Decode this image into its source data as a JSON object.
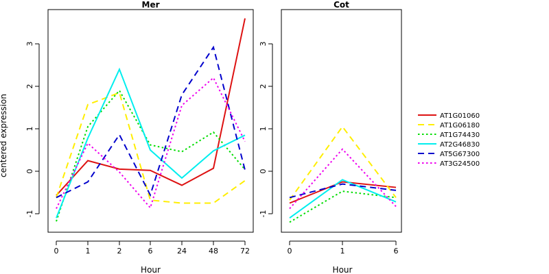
{
  "chart_data": [
    {
      "type": "line",
      "title": "Mer",
      "xlabel": "Hour",
      "ylabel": "centered expression",
      "categories": [
        "0",
        "1",
        "2",
        "6",
        "24",
        "48",
        "72"
      ],
      "yticks": [
        "-1",
        "0",
        "1",
        "2",
        "3"
      ],
      "ylim": [
        -1.4,
        3.7
      ],
      "series": [
        {
          "name": "AT1G01060",
          "values": [
            -0.57,
            0.25,
            0.05,
            0.02,
            -0.33,
            0.07,
            3.6
          ]
        },
        {
          "name": "AT1G06180",
          "values": [
            -0.62,
            1.57,
            1.85,
            -0.68,
            -0.75,
            -0.75,
            -0.22
          ]
        },
        {
          "name": "AT1G74430",
          "values": [
            -1.18,
            1.05,
            1.9,
            0.62,
            0.46,
            0.92,
            0.04
          ]
        },
        {
          "name": "AT2G46830",
          "values": [
            -1.1,
            0.78,
            2.4,
            0.5,
            -0.16,
            0.48,
            0.85
          ]
        },
        {
          "name": "AT5G67300",
          "values": [
            -0.62,
            -0.25,
            0.86,
            -0.56,
            1.8,
            2.92,
            0.03
          ]
        },
        {
          "name": "AT3G24500",
          "values": [
            -0.88,
            0.66,
            -0.02,
            -0.86,
            1.55,
            2.2,
            0.7
          ]
        }
      ]
    },
    {
      "type": "line",
      "title": "Cot",
      "xlabel": "Hour",
      "categories": [
        "0",
        "1",
        "6"
      ],
      "yticks": [
        "-1",
        "0",
        "1",
        "2",
        "3"
      ],
      "ylim": [
        -1.4,
        3.7
      ],
      "series": [
        {
          "name": "AT1G01060",
          "values": [
            -0.75,
            -0.25,
            -0.38
          ]
        },
        {
          "name": "AT1G06180",
          "values": [
            -0.68,
            1.05,
            -0.62
          ]
        },
        {
          "name": "AT1G74430",
          "values": [
            -1.2,
            -0.47,
            -0.62
          ]
        },
        {
          "name": "AT2G46830",
          "values": [
            -1.1,
            -0.2,
            -0.72
          ]
        },
        {
          "name": "AT5G67300",
          "values": [
            -0.62,
            -0.3,
            -0.45
          ]
        },
        {
          "name": "AT3G24500",
          "values": [
            -0.88,
            0.52,
            -0.83
          ]
        }
      ]
    }
  ],
  "legend": {
    "position": "right",
    "items": [
      {
        "label": "AT1G01060",
        "color": "#dd1111",
        "dash": "solid"
      },
      {
        "label": "AT1G06180",
        "color": "#ffee00",
        "dash": "dashed"
      },
      {
        "label": "AT1G74430",
        "color": "#00dd00",
        "dash": "dotted"
      },
      {
        "label": "AT2G46830",
        "color": "#00eeee",
        "dash": "solid"
      },
      {
        "label": "AT5G67300",
        "color": "#0000cc",
        "dash": "dashed"
      },
      {
        "label": "AT3G24500",
        "color": "#ee00ee",
        "dash": "dotted"
      }
    ]
  }
}
